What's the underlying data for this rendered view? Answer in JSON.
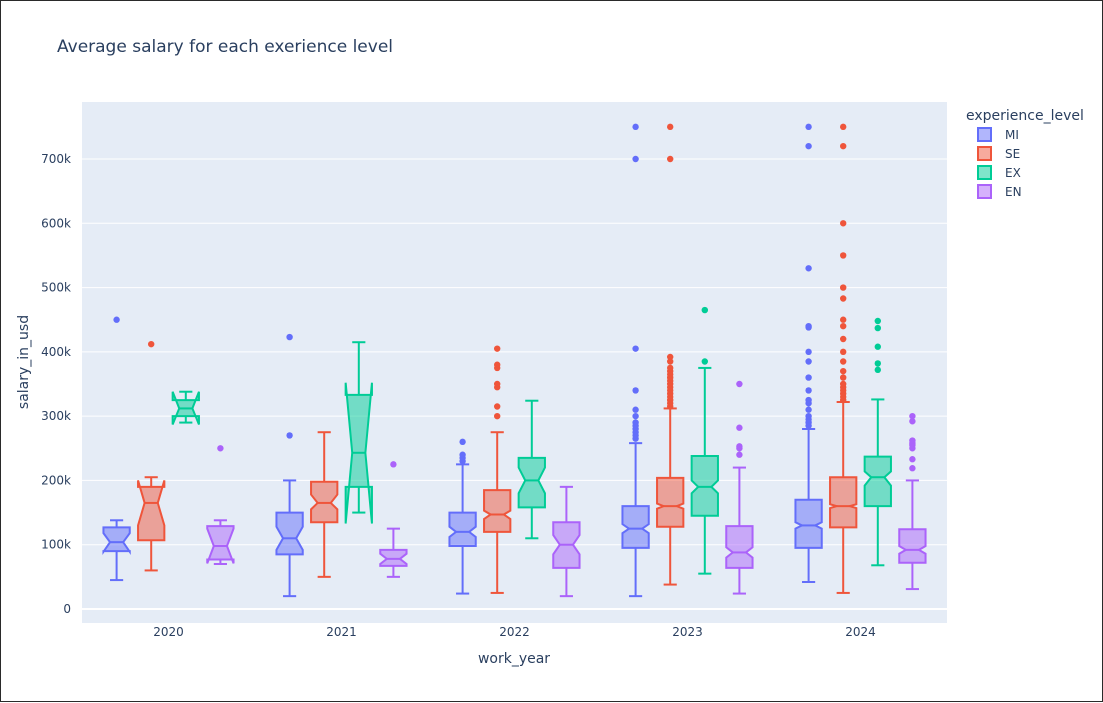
{
  "chart_data": {
    "type": "box",
    "notched": true,
    "title": "Average salary for each exerience level",
    "xlabel": "work_year",
    "ylabel": "salary_in_usd",
    "categories": [
      "2020",
      "2021",
      "2022",
      "2023",
      "2024"
    ],
    "ylim": [
      -20000,
      785000
    ],
    "yticks": [
      0,
      100000,
      200000,
      300000,
      400000,
      500000,
      600000,
      700000
    ],
    "ytick_labels": [
      "0",
      "100k",
      "200k",
      "300k",
      "400k",
      "500k",
      "600k",
      "700k"
    ],
    "grid": true,
    "legend": {
      "title": "experience_level",
      "position": "right-top",
      "items": [
        "MI",
        "SE",
        "EX",
        "EN"
      ]
    },
    "series": [
      {
        "name": "MI",
        "color": "#636efa",
        "boxes": [
          {
            "year": "2020",
            "min": 45000,
            "q1": 90000,
            "median": 104000,
            "q3": 127000,
            "max": 138000,
            "notch_low": 89000,
            "notch_high": 118000,
            "outliers": [
              450000
            ]
          },
          {
            "year": "2021",
            "min": 20000,
            "q1": 85000,
            "median": 110000,
            "q3": 150000,
            "max": 200000,
            "notch_low": 92000,
            "notch_high": 128000,
            "outliers": [
              270000,
              423000
            ]
          },
          {
            "year": "2022",
            "min": 24000,
            "q1": 98000,
            "median": 120000,
            "q3": 150000,
            "max": 225000,
            "notch_low": 112000,
            "notch_high": 128000,
            "outliers": [
              230000,
              235000,
              240000,
              260000
            ]
          },
          {
            "year": "2023",
            "min": 20000,
            "q1": 95000,
            "median": 125000,
            "q3": 160000,
            "max": 258000,
            "notch_low": 118000,
            "notch_high": 132000,
            "outliers": [
              265000,
              270000,
              275000,
              280000,
              285000,
              290000,
              300000,
              310000,
              340000,
              405000,
              700000,
              750000
            ]
          },
          {
            "year": "2024",
            "min": 42000,
            "q1": 95000,
            "median": 130000,
            "q3": 170000,
            "max": 280000,
            "notch_low": 125000,
            "notch_high": 135000,
            "outliers": [
              285000,
              290000,
              295000,
              300000,
              310000,
              320000,
              325000,
              340000,
              360000,
              385000,
              400000,
              438000,
              440000,
              530000,
              720000,
              750000
            ]
          }
        ]
      },
      {
        "name": "SE",
        "color": "#ef553b",
        "boxes": [
          {
            "year": "2020",
            "min": 60000,
            "q1": 107000,
            "median": 165000,
            "q3": 190000,
            "max": 205000,
            "notch_low": 130000,
            "notch_high": 200000,
            "outliers": [
              412000
            ]
          },
          {
            "year": "2021",
            "min": 50000,
            "q1": 135000,
            "median": 165000,
            "q3": 198000,
            "max": 275000,
            "notch_low": 155000,
            "notch_high": 178000,
            "outliers": []
          },
          {
            "year": "2022",
            "min": 25000,
            "q1": 120000,
            "median": 147000,
            "q3": 185000,
            "max": 275000,
            "notch_low": 140000,
            "notch_high": 153000,
            "outliers": [
              300000,
              315000,
              345000,
              350000,
              375000,
              380000,
              405000
            ]
          },
          {
            "year": "2023",
            "min": 38000,
            "q1": 128000,
            "median": 160000,
            "q3": 204000,
            "max": 312000,
            "notch_low": 156000,
            "notch_high": 164000,
            "outliers": [
              315000,
              320000,
              325000,
              330000,
              335000,
              340000,
              345000,
              350000,
              355000,
              360000,
              365000,
              370000,
              375000,
              385000,
              392000,
              700000,
              750000
            ]
          },
          {
            "year": "2024",
            "min": 25000,
            "q1": 127000,
            "median": 160000,
            "q3": 205000,
            "max": 322000,
            "notch_low": 157000,
            "notch_high": 163000,
            "outliers": [
              325000,
              330000,
              335000,
              340000,
              345000,
              350000,
              360000,
              370000,
              385000,
              400000,
              420000,
              440000,
              450000,
              483000,
              500000,
              550000,
              600000,
              720000,
              750000
            ]
          }
        ]
      },
      {
        "name": "EX",
        "color": "#00cc96",
        "boxes": [
          {
            "year": "2020",
            "min": 290000,
            "q1": 300000,
            "median": 312000,
            "q3": 325000,
            "max": 338000,
            "notch_low": 287000,
            "notch_high": 338000,
            "outliers": []
          },
          {
            "year": "2021",
            "min": 150000,
            "q1": 190000,
            "median": 243000,
            "q3": 333000,
            "max": 415000,
            "notch_low": 133000,
            "notch_high": 352000,
            "outliers": []
          },
          {
            "year": "2022",
            "min": 110000,
            "q1": 158000,
            "median": 200000,
            "q3": 235000,
            "max": 324000,
            "notch_low": 180000,
            "notch_high": 220000,
            "outliers": []
          },
          {
            "year": "2023",
            "min": 55000,
            "q1": 145000,
            "median": 190000,
            "q3": 238000,
            "max": 375000,
            "notch_low": 180000,
            "notch_high": 200000,
            "outliers": [
              385000,
              465000
            ]
          },
          {
            "year": "2024",
            "min": 68000,
            "q1": 160000,
            "median": 205000,
            "q3": 237000,
            "max": 326000,
            "notch_low": 192000,
            "notch_high": 214000,
            "outliers": [
              372000,
              382000,
              408000,
              437000,
              448000
            ]
          }
        ]
      },
      {
        "name": "EN",
        "color": "#ab63fa",
        "boxes": [
          {
            "year": "2020",
            "min": 70000,
            "q1": 77000,
            "median": 98000,
            "q3": 129000,
            "max": 138000,
            "notch_low": 71000,
            "notch_high": 125000,
            "outliers": [
              250000
            ]
          },
          {
            "year": "2021",
            "min": 50000,
            "q1": 67000,
            "median": 78000,
            "q3": 92000,
            "max": 125000,
            "notch_low": 70000,
            "notch_high": 86000,
            "outliers": [
              225000
            ]
          },
          {
            "year": "2022",
            "min": 20000,
            "q1": 64000,
            "median": 100000,
            "q3": 135000,
            "max": 190000,
            "notch_low": 85000,
            "notch_high": 115000,
            "outliers": []
          },
          {
            "year": "2023",
            "min": 24000,
            "q1": 64000,
            "median": 88000,
            "q3": 129000,
            "max": 220000,
            "notch_low": 80000,
            "notch_high": 96000,
            "outliers": [
              240000,
              250000,
              253000,
              282000,
              350000
            ]
          },
          {
            "year": "2024",
            "min": 31000,
            "q1": 72000,
            "median": 92000,
            "q3": 124000,
            "max": 200000,
            "notch_low": 86000,
            "notch_high": 98000,
            "outliers": [
              219000,
              233000,
              250000,
              255000,
              258000,
              262000,
              292000,
              300000
            ]
          }
        ]
      }
    ]
  }
}
